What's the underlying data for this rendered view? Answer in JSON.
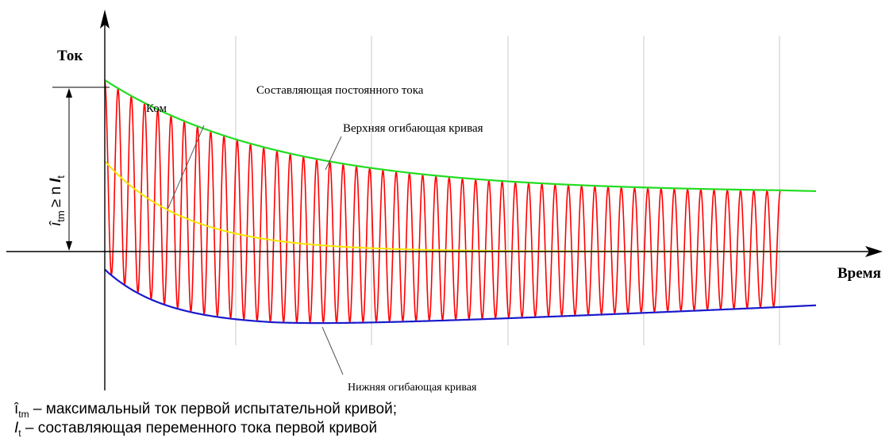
{
  "axes": {
    "y_label": "Ток",
    "x_label": "Время",
    "vertical_dimension": {
      "symbol": "î",
      "sub1": "tm",
      "relation": "≥ n",
      "italic": "I",
      "sub2": "t"
    }
  },
  "annotations": {
    "dc_component": "Составляющая постоянного тока",
    "upper_envelope": "Верхняя огибающая кривая",
    "lower_envelope": "Нижняя огибающая кривая",
    "truncated_label": "Ком"
  },
  "legend": [
    {
      "symbol": "î",
      "sub": "tm",
      "text": "– максимальный ток первой испытательной кривой;"
    },
    {
      "symbol": "I",
      "sub": "t",
      "text": "– составляющая переменного тока первой кривой"
    }
  ],
  "colors": {
    "oscillation": "#ff0000",
    "upper_envelope": "#22dd22",
    "lower_envelope": "#1a1acc",
    "dc_component": "#f5e600",
    "grid": "#c8c8c8",
    "axis": "#000000"
  },
  "curves": {
    "cycles": 51,
    "upper_envelope": {
      "start": 1.0,
      "end": 0.34,
      "decay": 0.26
    },
    "lower_envelope": {
      "start": -0.1,
      "min": -0.43,
      "end": -0.32
    },
    "dc_component": {
      "start": 0.53,
      "end": 0.0,
      "decay": 0.12
    }
  }
}
